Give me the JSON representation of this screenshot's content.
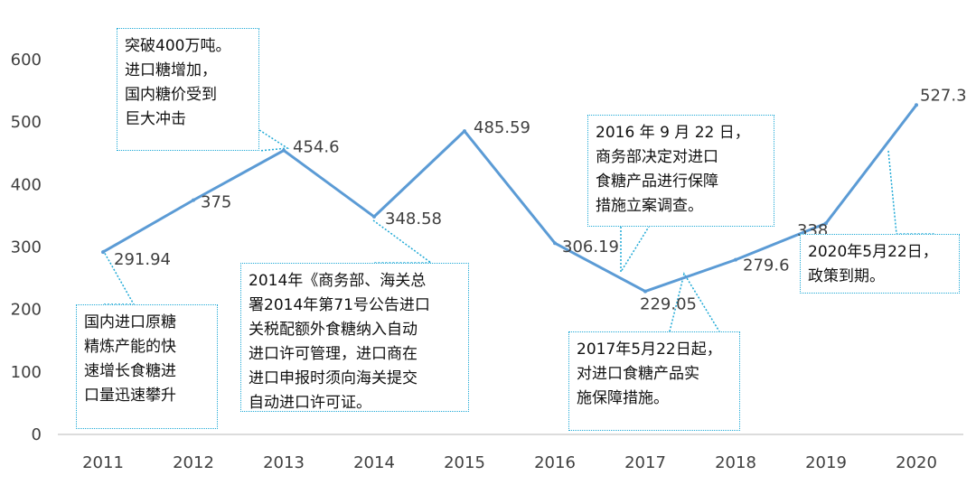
{
  "chart_data": {
    "type": "line",
    "categories": [
      "2011",
      "2012",
      "2013",
      "2014",
      "2015",
      "2016",
      "2017",
      "2018",
      "2019",
      "2020"
    ],
    "values": [
      291.94,
      375,
      454.6,
      348.58,
      485.59,
      306.19,
      229.05,
      279.6,
      338,
      527.3
    ],
    "data_labels": [
      "291.94",
      "375",
      "454.6",
      "348.58",
      "485.59",
      "306.19",
      "229.05",
      "279.6",
      "338",
      "527.3"
    ],
    "ylim": [
      0,
      600
    ],
    "yticks": [
      "0",
      "100",
      "200",
      "300",
      "400",
      "500",
      "600"
    ],
    "title": "",
    "xlabel": "",
    "ylabel": "",
    "grid": false,
    "legend": "none",
    "line_color": "#5b9bd5",
    "annotation_border_color": "#1fa9d6",
    "annotations": [
      {
        "text": "突破400万吨。\n进口糖增加，\n国内糖价受到\n巨大冲击",
        "year": "2013"
      },
      {
        "text": "国内进口原糖\n精炼产能的快\n速增长食糖进\n口量迅速攀升",
        "year": "2011"
      },
      {
        "text": "2014年《商务部、海关总\n署2014年第71号公告进口\n关税配额外食糖纳入自动\n进口许可管理，进口商在\n进口申报时须向海关提交\n自动进口许可证。",
        "year": "2014"
      },
      {
        "text": "2016 年 9 月 22 日，\n商务部决定对进口\n食糖产品进行保障\n措施立案调查。",
        "year": "2016"
      },
      {
        "text": "2017年5月22日起，\n对进口食糖产品实\n施保障措施。",
        "year": "2017"
      },
      {
        "text": "2020年5月22日，\n政策到期。",
        "year": "2020"
      }
    ]
  }
}
